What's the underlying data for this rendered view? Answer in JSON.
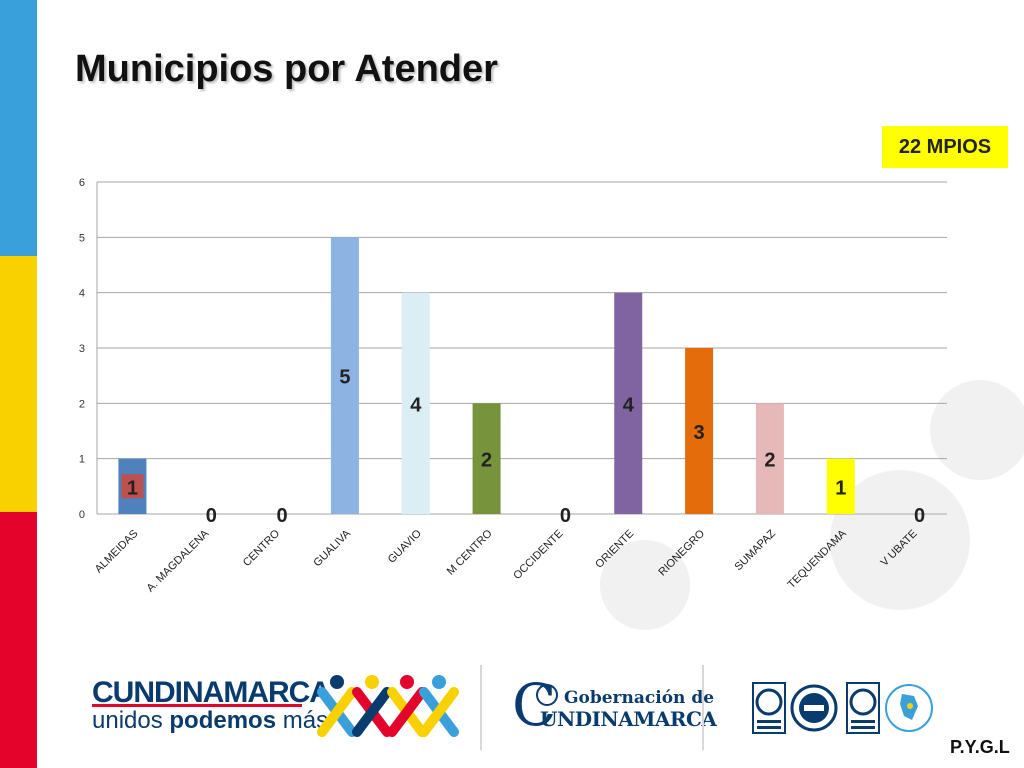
{
  "slide": {
    "title": "Municipios por Atender",
    "badge": "22 MPIOS",
    "footer_logo_text": "CUNDINAMARCA",
    "footer_tagline_plain": "unidos ",
    "footer_tagline_bold": "podemos",
    "footer_tagline_end": " más",
    "gob_line1": "Gobernación de",
    "gob_big_letter": "C",
    "gob_line2": "UNDINAMARCA",
    "initials": "P.Y.G.L",
    "colors": {
      "stripe_blue": "#3aa0dc",
      "stripe_yellow": "#f9d100",
      "stripe_red": "#e3032b",
      "badge_bg": "#ffff00"
    }
  },
  "chart_data": {
    "type": "bar",
    "title": "",
    "xlabel": "",
    "ylabel": "",
    "ylim": [
      0,
      6
    ],
    "yticks": [
      0,
      1,
      2,
      3,
      4,
      5,
      6
    ],
    "grid": true,
    "categories": [
      "ALMEIDAS",
      "A. MAGDALENA",
      "CENTRO",
      "GUALIVA",
      "GUAVIO",
      "M CENTRO",
      "OCCIDENTE",
      "ORIENTE",
      "RIONEGRO",
      "SUMAPAZ",
      "TEQUENDAMA",
      "V UBATE"
    ],
    "values": [
      1,
      0,
      0,
      5,
      4,
      2,
      0,
      4,
      3,
      2,
      1,
      0
    ],
    "bar_colors": [
      "#4f81bd",
      "#4f81bd",
      "#4f81bd",
      "#8db3e2",
      "#dbeef4",
      "#77933c",
      "#4f81bd",
      "#8064a2",
      "#e46c0a",
      "#e6b9b8",
      "#ffff00",
      "#4f81bd"
    ],
    "data_labels": [
      "1",
      "0",
      "0",
      "5",
      "4",
      "2",
      "0",
      "4",
      "3",
      "2",
      "1",
      "0"
    ]
  }
}
